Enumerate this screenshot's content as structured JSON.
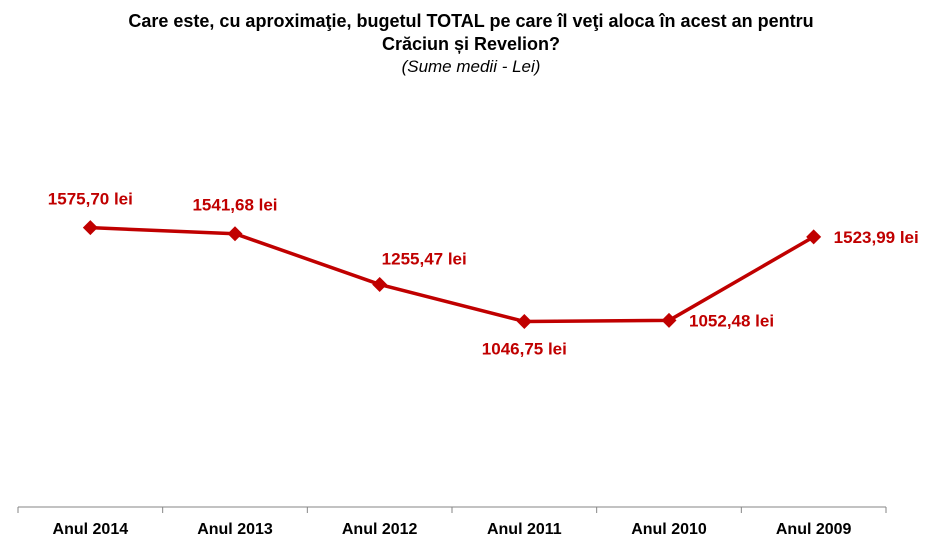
{
  "chart_data": {
    "type": "line",
    "title_lines": [
      "Care este, cu aproximaţie, bugetul TOTAL pe care îl veţi aloca în acest an pentru",
      "Crăciun și Revelion?"
    ],
    "subtitle": "(Sume medii - Lei)",
    "categories": [
      "Anul 2014",
      "Anul 2013",
      "Anul 2012",
      "Anul 2011",
      "Anul 2010",
      "Anul 2009"
    ],
    "values": [
      1575.7,
      1541.68,
      1255.47,
      1046.75,
      1052.48,
      1523.99
    ],
    "data_labels": [
      "1575,70 lei",
      "1541,68 lei",
      "1255,47 lei",
      "1046,75 lei",
      "1052,48 lei",
      "1523,99 lei"
    ],
    "label_positions": [
      "above",
      "above",
      "above-right",
      "below",
      "right",
      "right"
    ],
    "ylim": [
      0,
      2200
    ],
    "grid": false,
    "legend": "none",
    "series_color": "#c00000",
    "marker": "diamond"
  }
}
